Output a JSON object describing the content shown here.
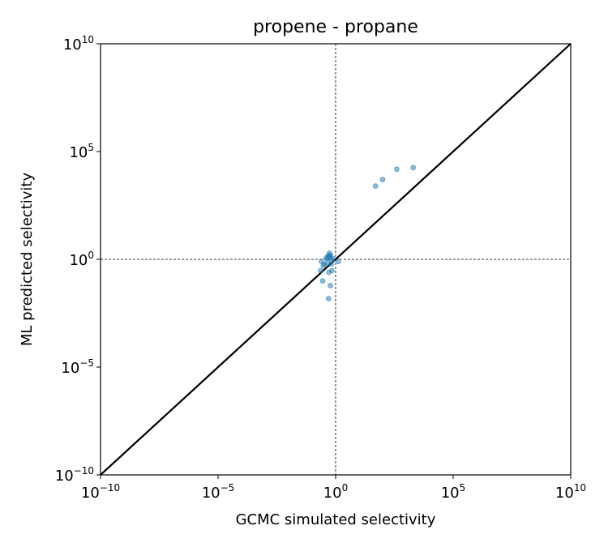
{
  "chart_data": {
    "type": "scatter",
    "title": "propene - propane",
    "xlabel": "GCMC simulated selectivity",
    "ylabel": "ML predicted selectivity",
    "xscale": "log",
    "yscale": "log",
    "xlim": [
      1e-10,
      10000000000.0
    ],
    "ylim": [
      1e-10,
      10000000000.0
    ],
    "tick_base": "10",
    "tick_exponents": [
      "−10",
      "−5",
      "0",
      "5",
      "10"
    ],
    "reference_line": "y = x",
    "reference_lines": [
      "x = 1",
      "y = 1"
    ],
    "grid": false,
    "legend": "none",
    "point_color": "#1f77b4",
    "line_color": "#000000",
    "points": [
      {
        "x": 0.25,
        "y": 0.8
      },
      {
        "x": 0.33,
        "y": 0.6
      },
      {
        "x": 0.4,
        "y": 1.2
      },
      {
        "x": 0.45,
        "y": 1.1
      },
      {
        "x": 0.5,
        "y": 1.5
      },
      {
        "x": 0.55,
        "y": 1.9
      },
      {
        "x": 0.6,
        "y": 1.5
      },
      {
        "x": 0.65,
        "y": 0.6
      },
      {
        "x": 0.7,
        "y": 0.3
      },
      {
        "x": 0.52,
        "y": 0.25
      },
      {
        "x": 0.6,
        "y": 0.06
      },
      {
        "x": 0.5,
        "y": 0.015
      },
      {
        "x": 0.28,
        "y": 0.1
      },
      {
        "x": 0.3,
        "y": 0.5
      },
      {
        "x": 0.45,
        "y": 0.7
      },
      {
        "x": 0.55,
        "y": 1.3
      },
      {
        "x": 0.7,
        "y": 0.9
      },
      {
        "x": 1.3,
        "y": 0.8
      },
      {
        "x": 0.23,
        "y": 0.3
      },
      {
        "x": 0.75,
        "y": 1.1
      },
      {
        "x": 50,
        "y": 2500
      },
      {
        "x": 100,
        "y": 5000
      },
      {
        "x": 400,
        "y": 15000
      },
      {
        "x": 2000,
        "y": 18000
      }
    ]
  }
}
